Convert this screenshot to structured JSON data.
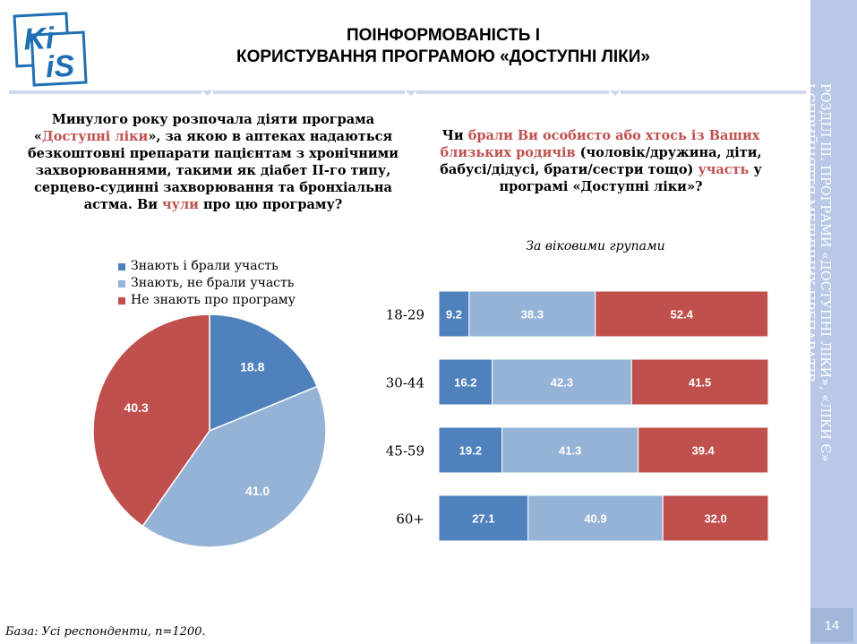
{
  "logo": {
    "text_top": "Ki",
    "text_bottom": "iS"
  },
  "title": {
    "line1": "ПОІНФОРМОВАНІСТЬ І",
    "line2": "КОРИСТУВАННЯ ПРОГРАМОЮ «ДОСТУПНІ ЛІКИ»"
  },
  "question_left": {
    "p1": "Минулого року розпочала діяти програма «",
    "p2": "Доступні ліки",
    "p3": "», за якою в аптеках надаються безкоштовні препарати пацієнтам з хронічними захворюваннями, такими як діабет II-го типу, серцево-судинні захворювання та бронхіальна астма. Ви ",
    "p4": "чули",
    "p5": " про цю програму?"
  },
  "question_right": {
    "p1": "Чи ",
    "p2": "брали Ви особисто або хтось із Ваших близьких родичів",
    "p3": " (чоловік/дружина, діти, бабусі/дідусі, брати/сестри тощо) ",
    "p4": " участь",
    "p5": " у програмі «Доступні ліки»?"
  },
  "subtitle": "За віковими групами",
  "colors": {
    "dark_blue": "#4f81bd",
    "light_blue": "#95b3d7",
    "red": "#c0504d",
    "sidebar": "#b8c8e6"
  },
  "chart_data": [
    {
      "type": "pie",
      "title": "",
      "categories": [
        "Знають і брали участь",
        "Знають, не брали участь",
        "Не знають про програму"
      ],
      "values": [
        18.8,
        41.0,
        40.3
      ],
      "legend": "top-left"
    },
    {
      "type": "bar",
      "orientation": "horizontal",
      "stacked": true,
      "title": "За віковими групами",
      "categories": [
        "18-29",
        "30-44",
        "45-59",
        "60+"
      ],
      "series": [
        {
          "name": "Знають і брали участь",
          "values": [
            9.2,
            16.2,
            19.2,
            27.1
          ]
        },
        {
          "name": "Знають, не брали участь",
          "values": [
            38.3,
            42.3,
            41.3,
            40.9
          ]
        },
        {
          "name": "Не знають про програму",
          "values": [
            52.4,
            41.5,
            39.4,
            32.0
          ]
        }
      ],
      "xlim": [
        0,
        100
      ]
    }
  ],
  "sidebar": {
    "line1": "РОЗДІЛ ІІІ. ПРОГРАМИ «ДОСТУПНІ ЛІКИ», «ЛІКИ Є»",
    "line2": "І СПРИЙНЯТТЯ МЕДИЧНИХ ПРЕПАРАТІВ"
  },
  "page_number": "14",
  "footer": "База: Усі респонденти, n=1200."
}
